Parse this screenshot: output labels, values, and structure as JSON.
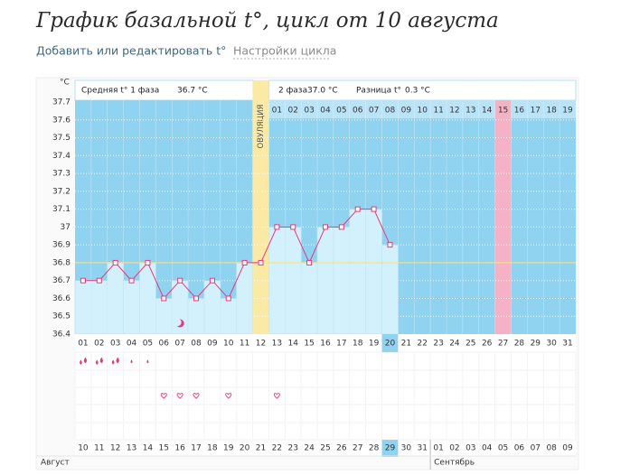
{
  "header": {
    "title": "График базальной t°, цикл от 10 августа",
    "links": [
      "Добавить или редактировать t°",
      "Настройки цикла"
    ]
  },
  "chart_data": {
    "type": "line",
    "y_unit": "°C",
    "info": {
      "phase1_label": "Средняя t° 1 фаза",
      "phase1_value": "36.7 °C",
      "phase2_label": "2 фаза",
      "phase2_value": "37.0 °C",
      "diff_label": "Разница t°",
      "diff_value": "0.3 °C"
    },
    "ovulation_label": "ОВУЛЯЦИЯ",
    "categories": [
      "01",
      "02",
      "03",
      "04",
      "05",
      "06",
      "07",
      "08",
      "09",
      "10",
      "11",
      "12",
      "13",
      "14",
      "15",
      "16",
      "17",
      "18",
      "19",
      "20",
      "21",
      "22",
      "23",
      "24",
      "25",
      "26",
      "27",
      "28",
      "29",
      "30",
      "31"
    ],
    "phase2_days": [
      "01",
      "02",
      "03",
      "04",
      "05",
      "06",
      "07",
      "08",
      "09",
      "10",
      "11",
      "12",
      "13",
      "14",
      "15",
      "16",
      "17",
      "18",
      "19"
    ],
    "dates": [
      "10",
      "11",
      "12",
      "13",
      "14",
      "15",
      "16",
      "17",
      "18",
      "19",
      "20",
      "21",
      "22",
      "23",
      "24",
      "25",
      "26",
      "27",
      "28",
      "29",
      "30",
      "31",
      "01",
      "02",
      "03",
      "04",
      "05",
      "06",
      "07",
      "08",
      "09"
    ],
    "months": [
      "Август",
      "Сентябрь"
    ],
    "series": [
      {
        "color": "#e8397c",
        "values": [
          36.7,
          36.7,
          36.8,
          36.7,
          36.8,
          36.6,
          36.7,
          36.6,
          36.7,
          36.6,
          36.8,
          36.8,
          37,
          37,
          36.8,
          37,
          37,
          37.1,
          37.1,
          36.9,
          null,
          null,
          null,
          null,
          null,
          null,
          null,
          null,
          null,
          null,
          null
        ]
      }
    ],
    "coverline": 36.8,
    "ylim": [
      36.4,
      37.7
    ],
    "yticks": [
      37.7,
      37.6,
      37.5,
      37.4,
      37.3,
      37.2,
      37.1,
      37,
      36.9,
      36.8,
      36.7,
      36.6,
      36.5,
      36.4
    ],
    "grid": true,
    "flow": [
      2,
      2,
      2,
      1,
      1
    ],
    "intercourse_days": [
      6,
      7,
      8,
      10,
      13
    ],
    "moon_day": 7
  }
}
